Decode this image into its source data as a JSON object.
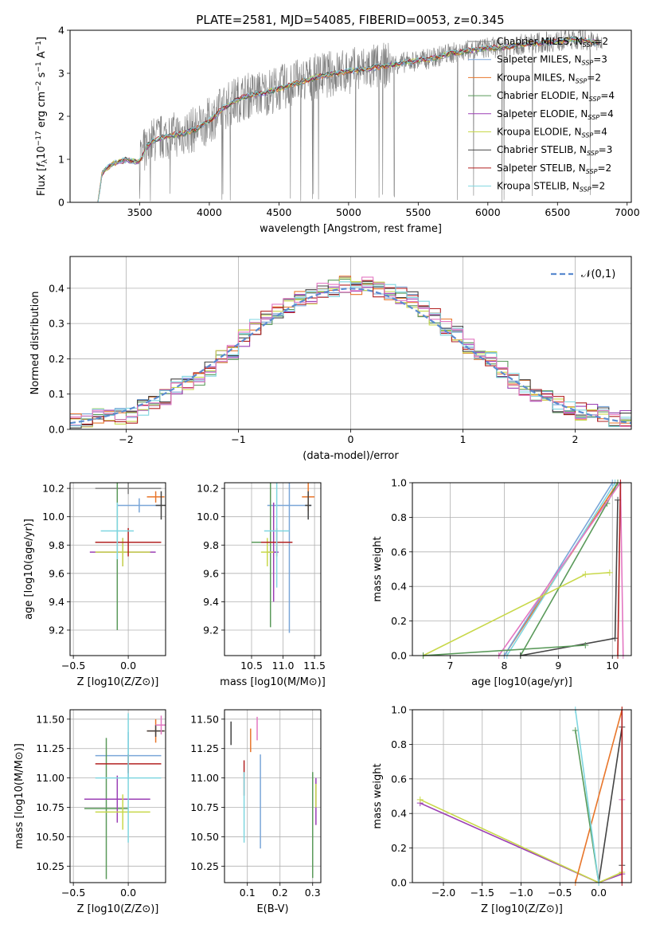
{
  "figure_title": "PLATE=2581, MJD=54085, FIBERID=0053, z=0.345",
  "legend_top": [
    {
      "label": "Chabrier MILES, N",
      "sub": "SSP",
      "tail": "=2",
      "color": "#808080"
    },
    {
      "label": "Salpeter MILES, N",
      "sub": "SSP",
      "tail": "=3",
      "color": "#7aa6d8"
    },
    {
      "label": "Kroupa MILES, N",
      "sub": "SSP",
      "tail": "=2",
      "color": "#e8762b"
    },
    {
      "label": "Chabrier ELODIE, N",
      "sub": "SSP",
      "tail": "=4",
      "color": "#5a9a5a"
    },
    {
      "label": "Salpeter ELODIE, N",
      "sub": "SSP",
      "tail": "=4",
      "color": "#9b3fb5"
    },
    {
      "label": "Kroupa ELODIE, N",
      "sub": "SSP",
      "tail": "=4",
      "color": "#c8d84a"
    },
    {
      "label": "Chabrier STELIB, N",
      "sub": "SSP",
      "tail": "=3",
      "color": "#444444"
    },
    {
      "label": "Salpeter STELIB, N",
      "sub": "SSP",
      "tail": "=2",
      "color": "#b22222"
    },
    {
      "label": "Kroupa STELIB, N",
      "sub": "SSP",
      "tail": "=2",
      "color": "#7fd6e0"
    }
  ],
  "legend_hist": {
    "label": "𝒩(0,1)",
    "color": "#5b8bd0"
  },
  "chart_data": [
    {
      "id": "spectrum",
      "type": "line",
      "title": "PLATE=2581, MJD=54085, FIBERID=0053, z=0.345",
      "xlabel": "wavelength [Angstrom, rest frame]",
      "ylabel": "Flux [f_λ 10^-17 erg cm^-2 s^-1 A^-1]",
      "xlim": [
        3000,
        7030
      ],
      "ylim": [
        0,
        4
      ],
      "xticks": [
        3500,
        4000,
        4500,
        5000,
        5500,
        6000,
        6500,
        7000
      ],
      "yticks": [
        0,
        1,
        2,
        3,
        4
      ],
      "grid": false,
      "continuum_x": [
        3200,
        3230,
        3300,
        3400,
        3500,
        3550,
        3600,
        3700,
        3800,
        3900,
        4000,
        4100,
        4200,
        4300,
        4400,
        4500,
        4600,
        4700,
        4800,
        4900,
        5000,
        5100,
        5200,
        5300,
        5400,
        5500,
        5600,
        5700,
        5800,
        5900,
        6000,
        6100,
        6200,
        6300,
        6400,
        6500,
        6600,
        6700,
        6800
      ],
      "continuum_y": [
        0.0,
        0.7,
        0.9,
        1.0,
        0.95,
        1.3,
        1.45,
        1.55,
        1.6,
        1.7,
        1.9,
        2.2,
        2.4,
        2.5,
        2.55,
        2.65,
        2.75,
        2.85,
        2.95,
        3.0,
        3.05,
        3.1,
        3.15,
        3.2,
        3.25,
        3.3,
        3.35,
        3.45,
        3.5,
        3.55,
        3.6,
        3.6,
        3.65,
        3.7,
        3.72,
        3.75,
        3.8,
        3.78,
        3.7
      ],
      "series_names": [
        "Chabrier MILES",
        "Salpeter MILES",
        "Kroupa MILES",
        "Chabrier ELODIE",
        "Salpeter ELODIE",
        "Kroupa ELODIE",
        "Chabrier STELIB",
        "Salpeter STELIB",
        "Kroupa STELIB"
      ],
      "legend_position": "upper-right"
    },
    {
      "id": "residuals",
      "type": "histogram",
      "xlabel": "(data-model)/error",
      "ylabel": "Normed distribution",
      "xlim": [
        -2.5,
        2.5
      ],
      "ylim": [
        0,
        0.49
      ],
      "xticks": [
        -2,
        -1,
        0,
        1,
        2
      ],
      "yticks": [
        0.0,
        0.1,
        0.2,
        0.3,
        0.4
      ],
      "grid": true,
      "bin_centers": [
        -2.45,
        -2.35,
        -2.25,
        -2.15,
        -2.05,
        -1.95,
        -1.85,
        -1.75,
        -1.65,
        -1.55,
        -1.45,
        -1.35,
        -1.25,
        -1.15,
        -1.05,
        -0.95,
        -0.85,
        -0.75,
        -0.65,
        -0.55,
        -0.45,
        -0.35,
        -0.25,
        -0.15,
        -0.05,
        0.05,
        0.15,
        0.25,
        0.35,
        0.45,
        0.55,
        0.65,
        0.75,
        0.85,
        0.95,
        1.05,
        1.15,
        1.25,
        1.35,
        1.45,
        1.55,
        1.65,
        1.75,
        1.85,
        1.95,
        2.05,
        2.15,
        2.25,
        2.35,
        2.45
      ],
      "density_approx": [
        0.02,
        0.03,
        0.04,
        0.03,
        0.04,
        0.04,
        0.06,
        0.08,
        0.09,
        0.12,
        0.13,
        0.15,
        0.17,
        0.2,
        0.22,
        0.26,
        0.29,
        0.31,
        0.34,
        0.35,
        0.37,
        0.38,
        0.39,
        0.4,
        0.41,
        0.4,
        0.41,
        0.4,
        0.39,
        0.38,
        0.37,
        0.34,
        0.32,
        0.29,
        0.27,
        0.24,
        0.21,
        0.2,
        0.17,
        0.14,
        0.12,
        0.1,
        0.09,
        0.07,
        0.06,
        0.05,
        0.05,
        0.04,
        0.03,
        0.03
      ],
      "reference_curve": "normal(0,1)",
      "legend_position": "upper-right"
    },
    {
      "id": "age_vs_Z",
      "type": "errorbar",
      "xlabel": "Z [log10(Z/Z⊙)]",
      "ylabel": "age  [log10(age/yr)]",
      "xlim": [
        -0.53,
        0.34
      ],
      "ylim": [
        9.02,
        10.24
      ],
      "xticks": [
        -0.5,
        0.0
      ],
      "yticks": [
        9.2,
        9.4,
        9.6,
        9.8,
        10.0,
        10.2
      ],
      "grid": true,
      "points": [
        {
          "x": 0.0,
          "y": 10.2,
          "xerr": 0.3,
          "yerr": 0.04,
          "color": "#808080"
        },
        {
          "x": 0.1,
          "y": 10.08,
          "xerr": 0.2,
          "yerr": 0.05,
          "color": "#7aa6d8"
        },
        {
          "x": 0.25,
          "y": 10.14,
          "xerr": 0.08,
          "yerr": 0.04,
          "color": "#e8762b"
        },
        {
          "x": -0.1,
          "y": 9.82,
          "xerr": 0.2,
          "yerr": 0.62,
          "color": "#5a9a5a"
        },
        {
          "x": -0.05,
          "y": 9.75,
          "xerr": 0.3,
          "yerr": 0.1,
          "color": "#9b3fb5"
        },
        {
          "x": -0.05,
          "y": 9.75,
          "xerr": 0.25,
          "yerr": 0.1,
          "color": "#c8d84a"
        },
        {
          "x": 0.3,
          "y": 10.08,
          "xerr": 0.05,
          "yerr": 0.1,
          "color": "#444444"
        },
        {
          "x": 0.0,
          "y": 9.82,
          "xerr": 0.3,
          "yerr": 0.1,
          "color": "#b22222"
        },
        {
          "x": -0.1,
          "y": 9.9,
          "xerr": 0.15,
          "yerr": 0.2,
          "color": "#7fd6e0"
        }
      ]
    },
    {
      "id": "age_vs_mass",
      "type": "errorbar",
      "xlabel": "mass [log10(M/M⊙)]",
      "ylabel": "",
      "xlim": [
        10.07,
        11.6
      ],
      "ylim": [
        9.02,
        10.24
      ],
      "xticks": [
        10.5,
        11.0,
        11.5
      ],
      "yticks": [
        9.2,
        9.4,
        9.6,
        9.8,
        10.0,
        10.2
      ],
      "grid": true,
      "points": [
        {
          "x": 11.1,
          "y": 10.08,
          "xerr": 0.35,
          "yerr": 0.9,
          "color": "#7aa6d8"
        },
        {
          "x": 11.4,
          "y": 10.14,
          "xerr": 0.1,
          "yerr": 0.1,
          "color": "#e8762b"
        },
        {
          "x": 10.8,
          "y": 9.82,
          "xerr": 0.3,
          "yerr": 0.6,
          "color": "#5a9a5a"
        },
        {
          "x": 10.85,
          "y": 9.75,
          "xerr": 0.08,
          "yerr": 0.35,
          "color": "#9b3fb5"
        },
        {
          "x": 10.75,
          "y": 9.75,
          "xerr": 0.1,
          "yerr": 0.1,
          "color": "#c8d84a"
        },
        {
          "x": 11.4,
          "y": 10.08,
          "xerr": 0.05,
          "yerr": 0.1,
          "color": "#444444"
        },
        {
          "x": 10.9,
          "y": 9.82,
          "xerr": 0.25,
          "yerr": 0.1,
          "color": "#b22222"
        },
        {
          "x": 10.9,
          "y": 9.9,
          "xerr": 0.2,
          "yerr": 0.4,
          "color": "#7fd6e0"
        }
      ]
    },
    {
      "id": "mass_weight_vs_age",
      "type": "line",
      "xlabel": "age  [log10(age/yr)]",
      "ylabel": "mass weight",
      "xlim": [
        6.3,
        10.35
      ],
      "ylim": [
        0,
        1
      ],
      "xticks": [
        7,
        8,
        9,
        10
      ],
      "yticks": [
        0.0,
        0.2,
        0.4,
        0.6,
        0.8,
        1.0
      ],
      "grid": true,
      "series": [
        {
          "color": "#e8762b",
          "x": [
            8.0,
            10.1
          ],
          "y": [
            0.0,
            1.0
          ]
        },
        {
          "color": "#7aa6d8",
          "x": [
            8.0,
            10.0
          ],
          "y": [
            0.0,
            1.0
          ]
        },
        {
          "color": "#7fd6e0",
          "x": [
            8.05,
            10.05
          ],
          "y": [
            0.0,
            1.0
          ]
        },
        {
          "color": "#5a9a5a",
          "x": [
            8.3,
            9.9,
            10.1
          ],
          "y": [
            0.0,
            0.88,
            1.0
          ]
        },
        {
          "color": "#e377c2",
          "x": [
            7.9,
            10.15,
            10.2
          ],
          "y": [
            0.0,
            1.0,
            0.0
          ]
        },
        {
          "color": "#c8d84a",
          "x": [
            6.5,
            9.5,
            9.95
          ],
          "y": [
            0.0,
            0.47,
            0.48
          ]
        },
        {
          "color": "#444444",
          "x": [
            8.3,
            10.05,
            10.1
          ],
          "y": [
            0.0,
            0.1,
            0.9
          ]
        },
        {
          "color": "#b22222",
          "x": [
            10.1,
            10.15
          ],
          "y": [
            0.0,
            1.0
          ]
        },
        {
          "color": "#5a9a5a",
          "x": [
            6.5,
            9.5
          ],
          "y": [
            0.0,
            0.06
          ]
        }
      ]
    },
    {
      "id": "mass_vs_Z",
      "type": "errorbar",
      "xlabel": "Z [log10(Z/Z⊙)]",
      "ylabel": "mass [log10(M/M⊙)]",
      "xlim": [
        -0.53,
        0.34
      ],
      "ylim": [
        10.11,
        11.58
      ],
      "xticks": [
        -0.5,
        0.0
      ],
      "yticks": [
        10.25,
        10.5,
        10.75,
        11.0,
        11.25,
        11.5
      ],
      "grid": true,
      "points": [
        {
          "x": 0.0,
          "y": 11.19,
          "xerr": 0.3,
          "yerr": 0.2,
          "color": "#7aa6d8"
        },
        {
          "x": 0.25,
          "y": 11.4,
          "xerr": 0.08,
          "yerr": 0.1,
          "color": "#e8762b"
        },
        {
          "x": -0.2,
          "y": 10.74,
          "xerr": 0.2,
          "yerr": 0.6,
          "color": "#5a9a5a"
        },
        {
          "x": -0.1,
          "y": 10.82,
          "xerr": 0.3,
          "yerr": 0.2,
          "color": "#9b3fb5"
        },
        {
          "x": -0.05,
          "y": 10.71,
          "xerr": 0.25,
          "yerr": 0.15,
          "color": "#c8d84a"
        },
        {
          "x": 0.25,
          "y": 11.4,
          "xerr": 0.08,
          "yerr": 0.05,
          "color": "#444444"
        },
        {
          "x": 0.0,
          "y": 11.12,
          "xerr": 0.3,
          "yerr": 0.08,
          "color": "#b22222"
        },
        {
          "x": 0.0,
          "y": 11.0,
          "xerr": 0.3,
          "yerr": 0.55,
          "color": "#7fd6e0"
        },
        {
          "x": 0.3,
          "y": 11.45,
          "xerr": 0.05,
          "yerr": 0.08,
          "color": "#e377c2"
        }
      ]
    },
    {
      "id": "mass_vs_ebv",
      "type": "errorbar",
      "xlabel": "E(B-V)",
      "ylabel": "",
      "xlim": [
        0.03,
        0.325
      ],
      "ylim": [
        10.11,
        11.58
      ],
      "xticks": [
        0.1,
        0.2,
        0.3
      ],
      "yticks": [
        10.25,
        10.5,
        10.75,
        11.0,
        11.25,
        11.5
      ],
      "grid": true,
      "points": [
        {
          "x": 0.05,
          "y": 11.38,
          "xerr": 0,
          "yerr": 0.1,
          "color": "#444444"
        },
        {
          "x": 0.11,
          "y": 11.32,
          "xerr": 0,
          "yerr": 0.1,
          "color": "#e8762b"
        },
        {
          "x": 0.13,
          "y": 11.42,
          "xerr": 0,
          "yerr": 0.1,
          "color": "#e377c2"
        },
        {
          "x": 0.09,
          "y": 11.0,
          "xerr": 0,
          "yerr": 0.15,
          "color": "#b22222"
        },
        {
          "x": 0.14,
          "y": 10.8,
          "xerr": 0,
          "yerr": 0.4,
          "color": "#7aa6d8"
        },
        {
          "x": 0.09,
          "y": 10.75,
          "xerr": 0,
          "yerr": 0.3,
          "color": "#7fd6e0"
        },
        {
          "x": 0.31,
          "y": 10.8,
          "xerr": 0,
          "yerr": 0.2,
          "color": "#9b3fb5"
        },
        {
          "x": 0.3,
          "y": 10.6,
          "xerr": 0,
          "yerr": 0.45,
          "color": "#5a9a5a"
        },
        {
          "x": 0.31,
          "y": 10.85,
          "xerr": 0,
          "yerr": 0.1,
          "color": "#c8d84a"
        }
      ]
    },
    {
      "id": "mass_weight_vs_Z",
      "type": "line",
      "xlabel": "Z [log10(Z/Z⊙)]",
      "ylabel": "mass weight",
      "xlim": [
        -2.4,
        0.42
      ],
      "ylim": [
        0,
        1
      ],
      "xticks": [
        -2.0,
        -1.5,
        -1.0,
        -0.5,
        0.0
      ],
      "yticks": [
        0.0,
        0.2,
        0.4,
        0.6,
        0.8,
        1.0
      ],
      "grid": true,
      "series": [
        {
          "color": "#9b3fb5",
          "x": [
            -2.3,
            0.0,
            0.3
          ],
          "y": [
            0.46,
            0.0,
            0.05
          ]
        },
        {
          "color": "#c8d84a",
          "x": [
            -2.3,
            0.0,
            0.3
          ],
          "y": [
            0.48,
            0.0,
            0.06
          ]
        },
        {
          "color": "#e8762b",
          "x": [
            -0.3,
            0.3
          ],
          "y": [
            0.0,
            1.0
          ]
        },
        {
          "color": "#444444",
          "x": [
            0.0,
            0.3,
            0.3
          ],
          "y": [
            0.0,
            0.9,
            0.1
          ]
        },
        {
          "color": "#5a9a5a",
          "x": [
            -0.3,
            0.0
          ],
          "y": [
            0.88,
            0.0
          ]
        },
        {
          "color": "#7fd6e0",
          "x": [
            -0.3,
            0.0
          ],
          "y": [
            1.0,
            0.0
          ]
        },
        {
          "color": "#e377c2",
          "x": [
            0.3,
            0.3
          ],
          "y": [
            0.0,
            0.48
          ]
        },
        {
          "color": "#b22222",
          "x": [
            0.3,
            0.3
          ],
          "y": [
            0.0,
            1.0
          ]
        }
      ]
    }
  ]
}
